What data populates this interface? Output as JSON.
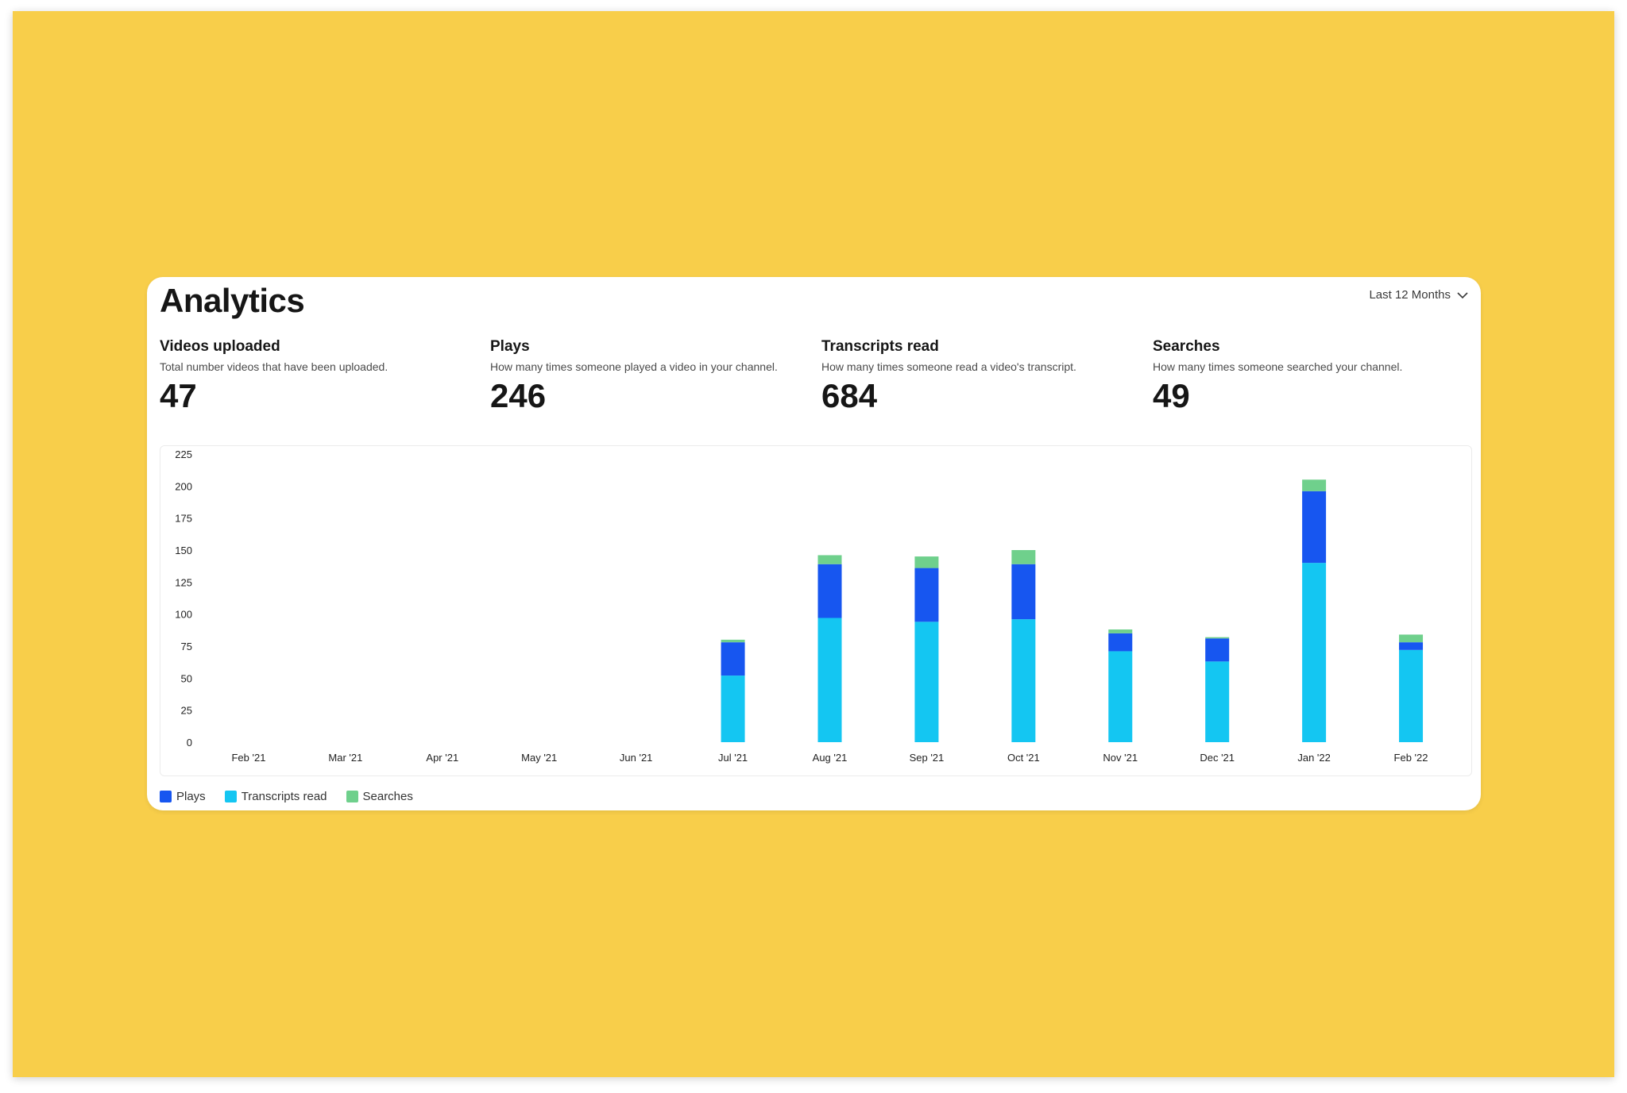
{
  "page": {
    "title": "Analytics"
  },
  "range_selector": {
    "label": "Last 12 Months"
  },
  "stats": [
    {
      "label": "Videos uploaded",
      "description": "Total number videos that have been uploaded.",
      "value": "47"
    },
    {
      "label": "Plays",
      "description": "How many times someone played a video in your channel.",
      "value": "246"
    },
    {
      "label": "Transcripts read",
      "description": "How many times someone read a video's transcript.",
      "value": "684"
    },
    {
      "label": "Searches",
      "description": "How many times someone searched your channel.",
      "value": "49"
    }
  ],
  "colors": {
    "background": "#F8CE4A",
    "plays": "#1756F0",
    "transcripts": "#14C6F2",
    "searches": "#6FD08C"
  },
  "legend": [
    {
      "name": "Plays",
      "color": "#1756F0"
    },
    {
      "name": "Transcripts read",
      "color": "#14C6F2"
    },
    {
      "name": "Searches",
      "color": "#6FD08C"
    }
  ],
  "chart_data": {
    "type": "bar",
    "stacked": true,
    "categories": [
      "Feb '21",
      "Mar '21",
      "Apr '21",
      "May '21",
      "Jun '21",
      "Jul '21",
      "Aug '21",
      "Sep '21",
      "Oct '21",
      "Nov '21",
      "Dec '21",
      "Jan '22",
      "Feb '22"
    ],
    "series": [
      {
        "name": "Transcripts read",
        "color": "#14C6F2",
        "values": [
          0,
          0,
          0,
          0,
          0,
          52,
          97,
          94,
          96,
          71,
          63,
          140,
          72
        ]
      },
      {
        "name": "Plays",
        "color": "#1756F0",
        "values": [
          0,
          0,
          0,
          0,
          0,
          26,
          42,
          42,
          43,
          14,
          18,
          56,
          6
        ]
      },
      {
        "name": "Searches",
        "color": "#6FD08C",
        "values": [
          0,
          0,
          0,
          0,
          0,
          2,
          7,
          9,
          11,
          3,
          1,
          9,
          6
        ]
      }
    ],
    "yticks": [
      0,
      25,
      50,
      75,
      100,
      125,
      150,
      175,
      200,
      225
    ],
    "ylim": [
      0,
      225
    ],
    "grid": false,
    "legend_position": "bottom-left"
  }
}
